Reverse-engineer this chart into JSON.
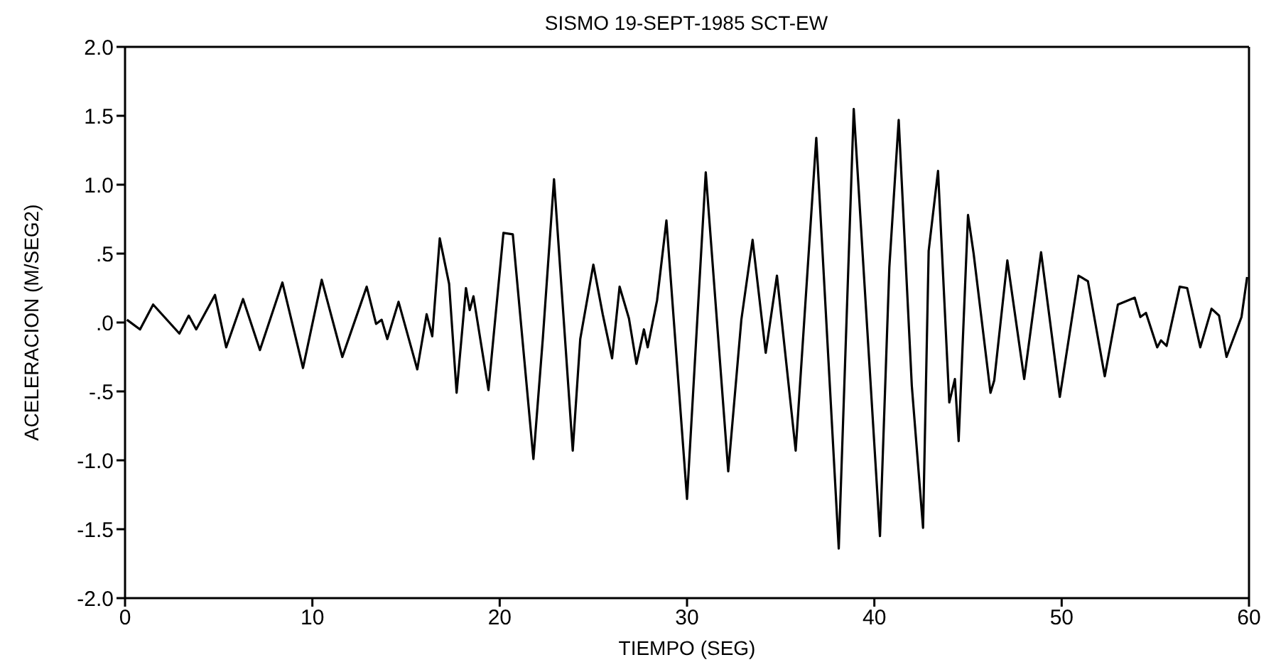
{
  "chart_data": {
    "type": "line",
    "title": "SISMO  19-SEPT-1985  SCT-EW",
    "xlabel": "TIEMPO  (SEG)",
    "ylabel": "ACELERACION  (M/SEG2)",
    "xlim": [
      0,
      60
    ],
    "xticks": [
      0,
      10,
      20,
      30,
      40,
      50,
      60
    ],
    "ylim": [
      -2,
      2
    ],
    "yticks": [
      {
        "value": -2,
        "label": "-2.0"
      },
      {
        "value": -1.5,
        "label": "-1.5"
      },
      {
        "value": -1,
        "label": "-1.0"
      },
      {
        "value": -0.5,
        "label": "-.5"
      },
      {
        "value": 0,
        "label": ".0"
      },
      {
        "value": 0.5,
        "label": ".5"
      },
      {
        "value": 1,
        "label": "1.0"
      },
      {
        "value": 1.5,
        "label": "1.5"
      },
      {
        "value": 2,
        "label": "2.0"
      }
    ],
    "grid": false,
    "marker": "none",
    "line_style": "solid",
    "series": [
      {
        "color": "#000000",
        "x": [
          0.1,
          0.8,
          1.5,
          2.9,
          3.4,
          3.8,
          4.8,
          5.4,
          6.3,
          7.2,
          8.4,
          9.5,
          10.5,
          11.6,
          12.9,
          13.4,
          13.7,
          14.0,
          14.6,
          15.6,
          16.1,
          16.4,
          16.8,
          17.3,
          17.7,
          18.2,
          18.4,
          18.6,
          19.4,
          20.2,
          20.7,
          21.8,
          22.3,
          22.9,
          23.9,
          24.3,
          25.0,
          25.5,
          26.0,
          26.4,
          26.9,
          27.3,
          27.7,
          27.9,
          28.4,
          28.9,
          30.0,
          31.0,
          32.2,
          32.9,
          33.5,
          34.2,
          34.8,
          35.8,
          36.9,
          38.1,
          38.9,
          40.3,
          40.8,
          41.3,
          42.0,
          42.6,
          42.9,
          43.4,
          44.0,
          44.3,
          44.5,
          45.0,
          45.3,
          46.2,
          46.4,
          47.1,
          48.0,
          48.9,
          49.9,
          50.9,
          51.4,
          52.3,
          53.0,
          53.9,
          54.2,
          54.5,
          55.1,
          55.3,
          55.6,
          56.3,
          56.7,
          57.4,
          58.0,
          58.4,
          58.8,
          59.6,
          59.9
        ],
        "values": [
          0.02,
          -0.05,
          0.13,
          -0.08,
          0.05,
          -0.05,
          0.2,
          -0.18,
          0.17,
          -0.2,
          0.29,
          -0.33,
          0.31,
          -0.25,
          0.26,
          -0.01,
          0.02,
          -0.12,
          0.15,
          -0.34,
          0.06,
          -0.1,
          0.61,
          0.28,
          -0.51,
          0.25,
          0.09,
          0.19,
          -0.49,
          0.65,
          0.64,
          -0.99,
          -0.12,
          1.04,
          -0.93,
          -0.12,
          0.42,
          0.06,
          -0.26,
          0.26,
          0.03,
          -0.3,
          -0.05,
          -0.18,
          0.16,
          0.74,
          -1.28,
          1.09,
          -1.08,
          0.02,
          0.6,
          -0.22,
          0.34,
          -0.93,
          1.34,
          -1.64,
          1.55,
          -1.55,
          0.4,
          1.47,
          -0.46,
          -1.49,
          0.52,
          1.1,
          -0.58,
          -0.41,
          -0.86,
          0.78,
          0.5,
          -0.51,
          -0.42,
          0.45,
          -0.41,
          0.51,
          -0.54,
          0.34,
          0.3,
          -0.39,
          0.13,
          0.18,
          0.04,
          0.07,
          -0.18,
          -0.13,
          -0.17,
          0.26,
          0.25,
          -0.18,
          0.1,
          0.05,
          -0.25,
          0.04,
          0.33
        ]
      }
    ]
  }
}
